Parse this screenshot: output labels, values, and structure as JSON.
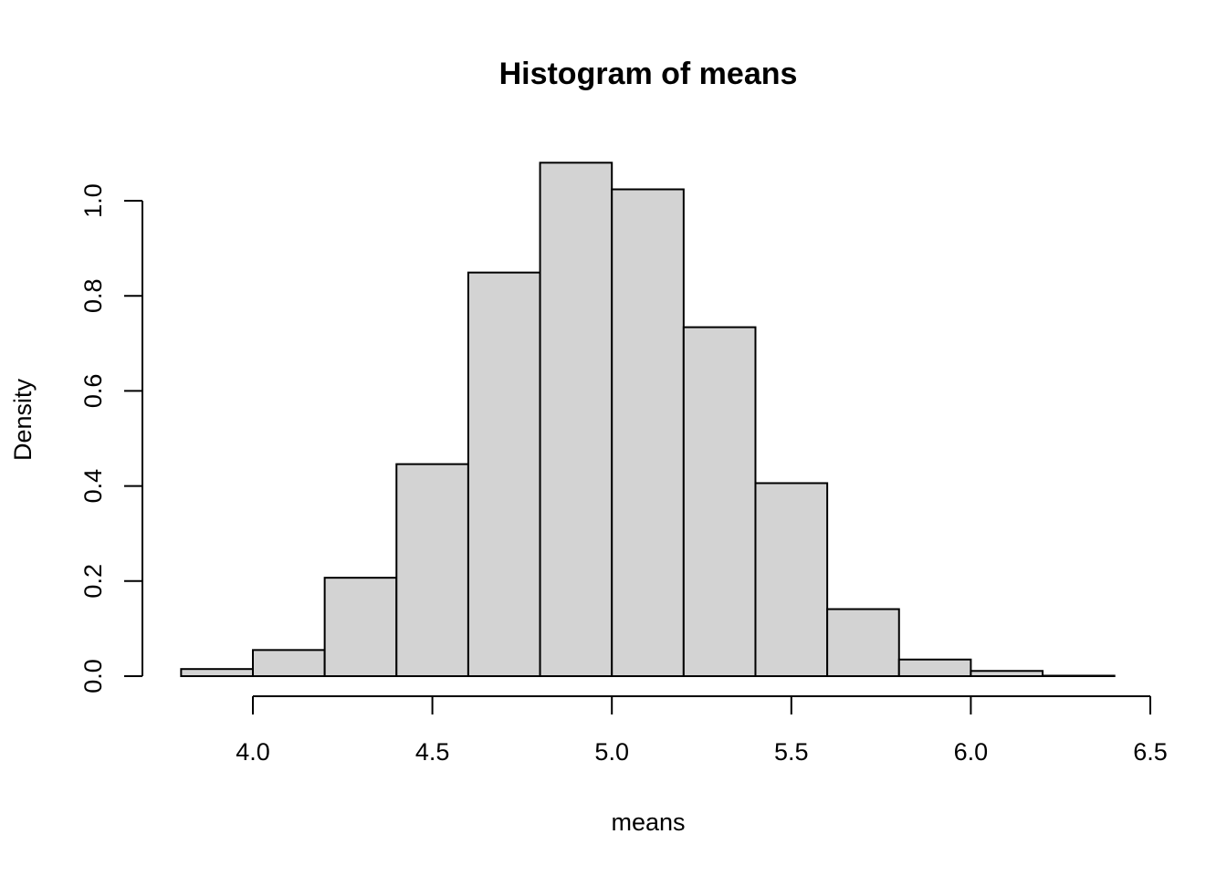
{
  "chart_data": {
    "type": "bar",
    "title": "Histogram of means",
    "xlabel": "means",
    "ylabel": "Density",
    "bins": [
      {
        "start": 3.8,
        "end": 4.0,
        "density": 0.015
      },
      {
        "start": 4.0,
        "end": 4.2,
        "density": 0.055
      },
      {
        "start": 4.2,
        "end": 4.4,
        "density": 0.207
      },
      {
        "start": 4.4,
        "end": 4.6,
        "density": 0.446
      },
      {
        "start": 4.6,
        "end": 4.8,
        "density": 0.849
      },
      {
        "start": 4.8,
        "end": 5.0,
        "density": 1.08
      },
      {
        "start": 5.0,
        "end": 5.2,
        "density": 1.024
      },
      {
        "start": 5.2,
        "end": 5.4,
        "density": 0.734
      },
      {
        "start": 5.4,
        "end": 5.6,
        "density": 0.406
      },
      {
        "start": 5.6,
        "end": 5.8,
        "density": 0.141
      },
      {
        "start": 5.8,
        "end": 6.0,
        "density": 0.035
      },
      {
        "start": 6.0,
        "end": 6.2,
        "density": 0.011
      },
      {
        "start": 6.2,
        "end": 6.4,
        "density": 0.001
      }
    ],
    "x_ticks": [
      "4.0",
      "4.5",
      "5.0",
      "5.5",
      "6.0",
      "6.5"
    ],
    "y_ticks": [
      "0.0",
      "0.2",
      "0.4",
      "0.6",
      "0.8",
      "1.0"
    ],
    "xlim": [
      4.0,
      6.5
    ],
    "ylim": [
      0.0,
      1.0
    ],
    "grid": false,
    "legend": "none",
    "bar_fill": "#d3d3d3",
    "bar_stroke": "#000000"
  }
}
